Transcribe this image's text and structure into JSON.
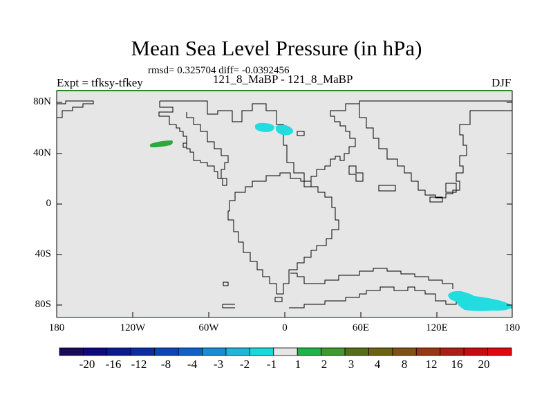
{
  "title": "Mean Sea Level Pressure (in hPa)",
  "stats": "rmsd= 0.325704 diff= -0.0392456",
  "left_label": "Expt = tfksy-tfkey",
  "center_label": "121_8_MaBP - 121_8_MaBP",
  "right_label": "DJF",
  "y_axis": {
    "ticks": [
      "80N",
      "40N",
      "0",
      "40S",
      "80S"
    ],
    "values": [
      80,
      40,
      0,
      -40,
      -80
    ],
    "range": [
      -90,
      90
    ]
  },
  "x_axis": {
    "ticks": [
      "180",
      "120W",
      "60W",
      "0",
      "60E",
      "120E",
      "180"
    ],
    "values": [
      -180,
      -120,
      -60,
      0,
      60,
      120,
      180
    ],
    "range": [
      -180,
      180
    ]
  },
  "colorbar": {
    "colors": [
      "#1a0a5c",
      "#0e0a7a",
      "#0a1c8c",
      "#0a2e9e",
      "#0a46b4",
      "#1060c8",
      "#1a8cd2",
      "#22b4dc",
      "#1ad8e0",
      "#e6e6e6",
      "#20b446",
      "#3c9a2a",
      "#566e14",
      "#6a6410",
      "#825010",
      "#963810",
      "#aa2010",
      "#c40c0c",
      "#e00808"
    ],
    "labels": [
      "-20",
      "-16",
      "-12",
      "-8",
      "-4",
      "-3",
      "-2",
      "-1",
      "1",
      "2",
      "3",
      "4",
      "8",
      "12",
      "16",
      "20"
    ]
  },
  "anomalies": [
    {
      "name": "cyan-anomaly-north",
      "color": "#22dde0",
      "lon": -15,
      "lat": 60
    },
    {
      "name": "cyan-anomaly-north-2",
      "color": "#22dde0",
      "lon": -2,
      "lat": 58
    },
    {
      "name": "green-anomaly-pacific",
      "color": "#2ca83c",
      "lon": -98,
      "lat": 48
    },
    {
      "name": "cyan-anomaly-south",
      "color": "#22dde0",
      "lon": 150,
      "lat": -78
    }
  ],
  "colors": {
    "ocean": "#e6e6e6",
    "frame_top": "#2a8a2a",
    "coast": "#000000"
  }
}
